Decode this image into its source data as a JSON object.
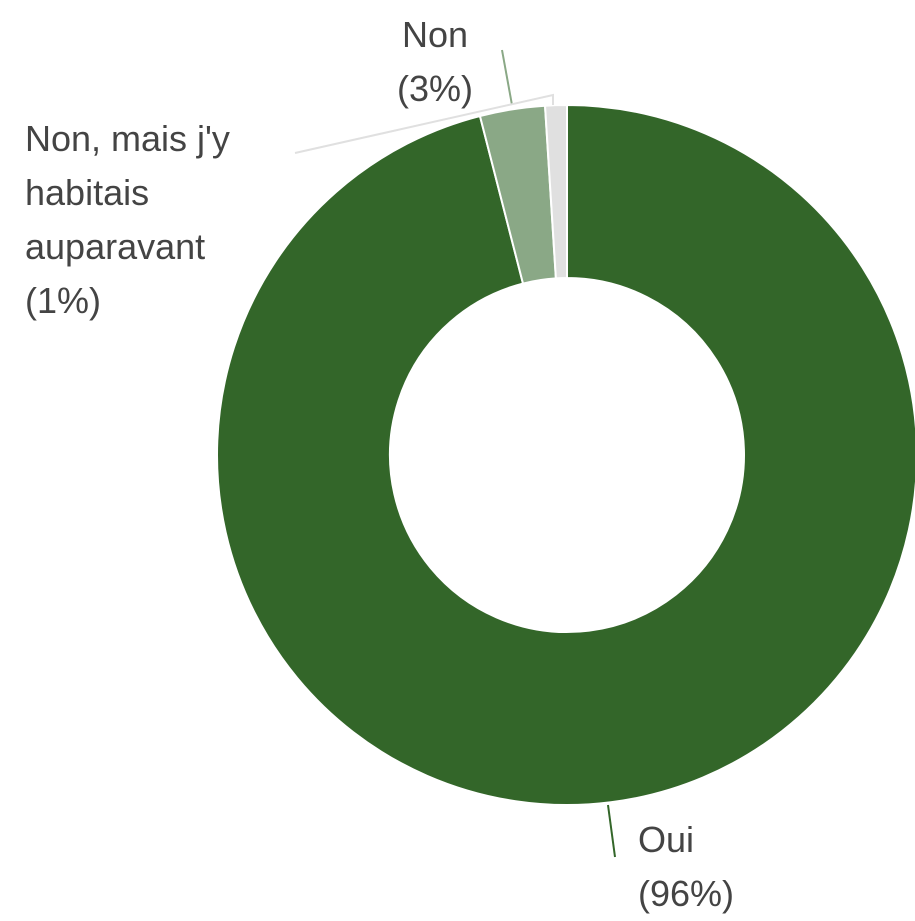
{
  "chart_data": {
    "type": "donut",
    "categories": [
      "Oui",
      "Non",
      "Non, mais j'y habitais auparavant"
    ],
    "values": [
      96,
      3,
      1
    ],
    "value_labels": [
      "(96%)",
      "(3%)",
      "(1%)"
    ],
    "colors": [
      "#336629",
      "#8aa886",
      "#e0e0e0"
    ]
  }
}
